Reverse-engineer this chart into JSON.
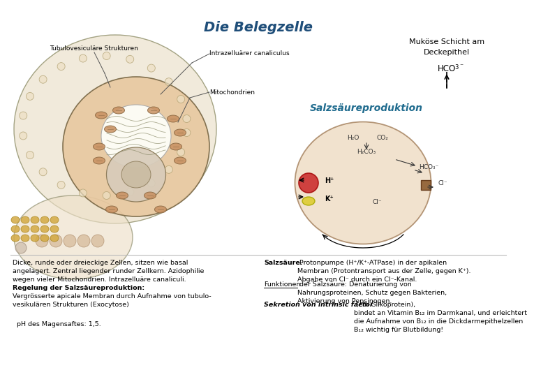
{
  "title": "Die Belegzelle",
  "title_color": "#1F4E79",
  "title_fontsize": 14,
  "label_tubulovesicular": "Tubulovesiculäre Strukturen",
  "label_canaliculus": "Intrazelluärer canaliculus",
  "label_mitochondrien": "Mitochondrien",
  "label_mukose_line1": "Muköse Schicht am",
  "label_mukose_line2": "Deckepithel",
  "label_hco3": "HCO",
  "label_hco3_sub": "3",
  "label_hco3_sup": "⁻",
  "label_salz": "Salzsäureproduktion",
  "label_salz_color": "#1F6B8E",
  "text_left_1": "Dicke, runde oder dreieckige Zellen, sitzen wie basal\nangelagert. Zentral liegender runder Zellkern. Azidophilie\nwegen vieler Mitochondrien. Intrazelluäre canaliculi.",
  "text_left_2_bold": "Regelung der Salzsäureproduktion:",
  "text_left_3": "Vergrösserte apicale Membran durch Aufnahme von tubulo-\nvesikulären Strukturen (Exocytose)",
  "text_left_4": "  pH des Magensaftes: 1,5.",
  "text_right_1_bold": "Salzsäure.",
  "text_right_1_rest": " Protonpumpe (H⁺/K⁺-ATPase) in der apikalen\nMembran (Protontransport aus der Zelle, gegen K⁺).\nAbgabe von Cl⁻ durch ein Cl⁻-Kanal.",
  "text_right_2_ul": "Funktionen",
  "text_right_2_rest": " der Salzsäure: Denaturierung von\nNahrungsproteinen, Schutz gegen Bakterien,\nAktivierung von Pepsinogen.",
  "text_right_3a_italic": "Sekretion von intrinsic factor",
  "text_right_3b": " (ein Glikoprotein),\nbindet an Vitamin B₁₂ im Darmkanal, und erleichtert\ndie Aufnahme von B₁₂ in die Dickdarmepithelzellen\nB₁₂ wichtig für Blutbildung!",
  "bg_color": "#FFFFFF",
  "font_size_body": 6.8,
  "font_size_label": 6.5
}
